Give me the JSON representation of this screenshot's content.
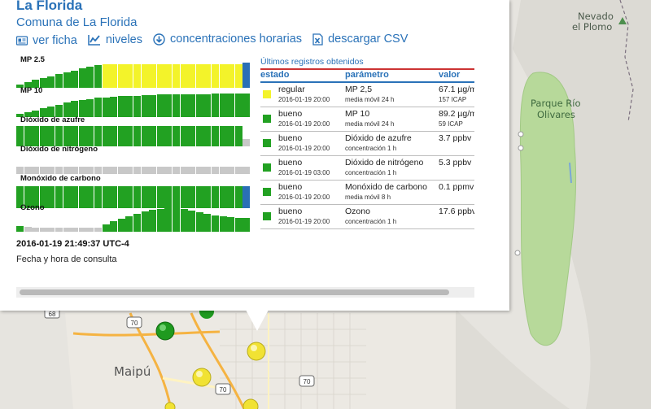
{
  "station": {
    "title": "La Florida",
    "commune": "Comuna de La Florida"
  },
  "links": [
    {
      "label": "ver ficha",
      "icon": "id-card-icon"
    },
    {
      "label": "niveles",
      "icon": "line-chart-icon"
    },
    {
      "label": "concentraciones horarias",
      "icon": "download-circle-icon"
    },
    {
      "label": "descargar CSV",
      "icon": "excel-file-icon"
    }
  ],
  "colors": {
    "bueno": "#22a122",
    "regular": "#f3f32a",
    "sin_dato": "#c8c8c8",
    "actual": "#2a6fb6",
    "link": "#2a72b8"
  },
  "parameters": [
    {
      "name": "MP 2.5",
      "bars": [
        {
          "v": 0.14,
          "s": "bueno"
        },
        {
          "v": 0.22,
          "s": "bueno"
        },
        {
          "v": 0.3,
          "s": "bueno"
        },
        {
          "v": 0.38,
          "s": "bueno"
        },
        {
          "v": 0.45,
          "s": "bueno"
        },
        {
          "v": 0.52,
          "s": "bueno"
        },
        {
          "v": 0.6,
          "s": "bueno"
        },
        {
          "v": 0.67,
          "s": "bueno"
        },
        {
          "v": 0.75,
          "s": "bueno"
        },
        {
          "v": 0.82,
          "s": "bueno"
        },
        {
          "v": 0.88,
          "s": "bueno"
        },
        {
          "v": 0.92,
          "s": "regular"
        },
        {
          "v": 0.92,
          "s": "regular"
        },
        {
          "v": 0.92,
          "s": "regular"
        },
        {
          "v": 0.92,
          "s": "regular"
        },
        {
          "v": 0.92,
          "s": "regular"
        },
        {
          "v": 0.92,
          "s": "regular"
        },
        {
          "v": 0.92,
          "s": "regular"
        },
        {
          "v": 0.92,
          "s": "regular"
        },
        {
          "v": 0.92,
          "s": "regular"
        },
        {
          "v": 0.92,
          "s": "regular"
        },
        {
          "v": 0.92,
          "s": "regular"
        },
        {
          "v": 0.92,
          "s": "regular"
        },
        {
          "v": 0.92,
          "s": "regular"
        },
        {
          "v": 0.92,
          "s": "regular"
        },
        {
          "v": 0.92,
          "s": "regular"
        },
        {
          "v": 0.92,
          "s": "regular"
        },
        {
          "v": 0.92,
          "s": "regular"
        },
        {
          "v": 0.92,
          "s": "regular"
        },
        {
          "v": 0.96,
          "s": "actual"
        }
      ]
    },
    {
      "name": "MP 10",
      "bars": [
        {
          "v": 0.12,
          "s": "bueno"
        },
        {
          "v": 0.18,
          "s": "bueno"
        },
        {
          "v": 0.26,
          "s": "bueno"
        },
        {
          "v": 0.34,
          "s": "bueno"
        },
        {
          "v": 0.42,
          "s": "bueno"
        },
        {
          "v": 0.48,
          "s": "bueno"
        },
        {
          "v": 0.56,
          "s": "bueno"
        },
        {
          "v": 0.62,
          "s": "bueno"
        },
        {
          "v": 0.66,
          "s": "bueno"
        },
        {
          "v": 0.7,
          "s": "bueno"
        },
        {
          "v": 0.74,
          "s": "bueno"
        },
        {
          "v": 0.76,
          "s": "bueno"
        },
        {
          "v": 0.78,
          "s": "bueno"
        },
        {
          "v": 0.8,
          "s": "bueno"
        },
        {
          "v": 0.82,
          "s": "bueno"
        },
        {
          "v": 0.82,
          "s": "bueno"
        },
        {
          "v": 0.84,
          "s": "bueno"
        },
        {
          "v": 0.84,
          "s": "bueno"
        },
        {
          "v": 0.86,
          "s": "bueno"
        },
        {
          "v": 0.86,
          "s": "bueno"
        },
        {
          "v": 0.86,
          "s": "bueno"
        },
        {
          "v": 0.88,
          "s": "bueno"
        },
        {
          "v": 0.88,
          "s": "bueno"
        },
        {
          "v": 0.88,
          "s": "bueno"
        },
        {
          "v": 0.88,
          "s": "bueno"
        },
        {
          "v": 0.9,
          "s": "bueno"
        },
        {
          "v": 0.9,
          "s": "bueno"
        },
        {
          "v": 0.9,
          "s": "bueno"
        },
        {
          "v": 0.9,
          "s": "bueno"
        },
        {
          "v": 0.92,
          "s": "bueno"
        }
      ]
    },
    {
      "name": "Dióxido de azufre",
      "bars": [
        {
          "v": 0.78,
          "s": "bueno"
        },
        {
          "v": 0.78,
          "s": "bueno"
        },
        {
          "v": 0.78,
          "s": "bueno"
        },
        {
          "v": 0.78,
          "s": "bueno"
        },
        {
          "v": 0.78,
          "s": "bueno"
        },
        {
          "v": 0.78,
          "s": "bueno"
        },
        {
          "v": 0.78,
          "s": "bueno"
        },
        {
          "v": 0.78,
          "s": "bueno"
        },
        {
          "v": 0.78,
          "s": "bueno"
        },
        {
          "v": 0.78,
          "s": "bueno"
        },
        {
          "v": 0.78,
          "s": "bueno"
        },
        {
          "v": 0.78,
          "s": "bueno"
        },
        {
          "v": 0.78,
          "s": "bueno"
        },
        {
          "v": 0.78,
          "s": "bueno"
        },
        {
          "v": 0.78,
          "s": "bueno"
        },
        {
          "v": 0.78,
          "s": "bueno"
        },
        {
          "v": 0.78,
          "s": "bueno"
        },
        {
          "v": 0.78,
          "s": "bueno"
        },
        {
          "v": 0.78,
          "s": "bueno"
        },
        {
          "v": 0.78,
          "s": "bueno"
        },
        {
          "v": 0.78,
          "s": "bueno"
        },
        {
          "v": 0.78,
          "s": "bueno"
        },
        {
          "v": 0.78,
          "s": "bueno"
        },
        {
          "v": 0.78,
          "s": "bueno"
        },
        {
          "v": 0.78,
          "s": "bueno"
        },
        {
          "v": 0.78,
          "s": "bueno"
        },
        {
          "v": 0.78,
          "s": "bueno"
        },
        {
          "v": 0.78,
          "s": "bueno"
        },
        {
          "v": 0.78,
          "s": "bueno"
        },
        {
          "v": 0.28,
          "s": "sin_dato"
        }
      ]
    },
    {
      "name": "Dióxido de nitrógeno",
      "bars": [
        {
          "v": 0.28,
          "s": "sin_dato"
        },
        {
          "v": 0.28,
          "s": "sin_dato"
        },
        {
          "v": 0.28,
          "s": "sin_dato"
        },
        {
          "v": 0.28,
          "s": "sin_dato"
        },
        {
          "v": 0.28,
          "s": "sin_dato"
        },
        {
          "v": 0.28,
          "s": "sin_dato"
        },
        {
          "v": 0.28,
          "s": "sin_dato"
        },
        {
          "v": 0.28,
          "s": "sin_dato"
        },
        {
          "v": 0.28,
          "s": "sin_dato"
        },
        {
          "v": 0.28,
          "s": "sin_dato"
        },
        {
          "v": 0.28,
          "s": "sin_dato"
        },
        {
          "v": 0.28,
          "s": "sin_dato"
        },
        {
          "v": 0.28,
          "s": "sin_dato"
        },
        {
          "v": 0.28,
          "s": "sin_dato"
        },
        {
          "v": 0.28,
          "s": "sin_dato"
        },
        {
          "v": 0.28,
          "s": "sin_dato"
        },
        {
          "v": 0.28,
          "s": "sin_dato"
        },
        {
          "v": 0.28,
          "s": "sin_dato"
        },
        {
          "v": 0.28,
          "s": "sin_dato"
        },
        {
          "v": 0.28,
          "s": "sin_dato"
        },
        {
          "v": 0.28,
          "s": "sin_dato"
        },
        {
          "v": 0.28,
          "s": "sin_dato"
        },
        {
          "v": 0.28,
          "s": "sin_dato"
        },
        {
          "v": 0.28,
          "s": "sin_dato"
        },
        {
          "v": 0.28,
          "s": "sin_dato"
        },
        {
          "v": 0.28,
          "s": "sin_dato"
        },
        {
          "v": 0.28,
          "s": "sin_dato"
        },
        {
          "v": 0.28,
          "s": "sin_dato"
        },
        {
          "v": 0.28,
          "s": "sin_dato"
        },
        {
          "v": 0.28,
          "s": "sin_dato"
        }
      ]
    },
    {
      "name": "Monóxido de carbono",
      "bars": [
        {
          "v": 0.84,
          "s": "bueno"
        },
        {
          "v": 0.84,
          "s": "bueno"
        },
        {
          "v": 0.84,
          "s": "bueno"
        },
        {
          "v": 0.84,
          "s": "bueno"
        },
        {
          "v": 0.84,
          "s": "bueno"
        },
        {
          "v": 0.84,
          "s": "bueno"
        },
        {
          "v": 0.84,
          "s": "bueno"
        },
        {
          "v": 0.84,
          "s": "bueno"
        },
        {
          "v": 0.84,
          "s": "bueno"
        },
        {
          "v": 0.84,
          "s": "bueno"
        },
        {
          "v": 0.84,
          "s": "bueno"
        },
        {
          "v": 0.84,
          "s": "bueno"
        },
        {
          "v": 0.84,
          "s": "bueno"
        },
        {
          "v": 0.84,
          "s": "bueno"
        },
        {
          "v": 0.84,
          "s": "bueno"
        },
        {
          "v": 0.84,
          "s": "bueno"
        },
        {
          "v": 0.84,
          "s": "bueno"
        },
        {
          "v": 0.84,
          "s": "bueno"
        },
        {
          "v": 0.84,
          "s": "bueno"
        },
        {
          "v": 0.84,
          "s": "bueno"
        },
        {
          "v": 0.84,
          "s": "bueno"
        },
        {
          "v": 0.84,
          "s": "bueno"
        },
        {
          "v": 0.84,
          "s": "bueno"
        },
        {
          "v": 0.84,
          "s": "bueno"
        },
        {
          "v": 0.84,
          "s": "bueno"
        },
        {
          "v": 0.84,
          "s": "bueno"
        },
        {
          "v": 0.84,
          "s": "bueno"
        },
        {
          "v": 0.84,
          "s": "bueno"
        },
        {
          "v": 0.84,
          "s": "bueno"
        },
        {
          "v": 0.84,
          "s": "actual"
        }
      ]
    },
    {
      "name": "Ozono",
      "bars": [
        {
          "v": 0.22,
          "s": "bueno"
        },
        {
          "v": 0.18,
          "s": "sin_dato"
        },
        {
          "v": 0.16,
          "s": "sin_dato"
        },
        {
          "v": 0.16,
          "s": "sin_dato"
        },
        {
          "v": 0.16,
          "s": "sin_dato"
        },
        {
          "v": 0.16,
          "s": "sin_dato"
        },
        {
          "v": 0.16,
          "s": "sin_dato"
        },
        {
          "v": 0.16,
          "s": "sin_dato"
        },
        {
          "v": 0.16,
          "s": "sin_dato"
        },
        {
          "v": 0.16,
          "s": "sin_dato"
        },
        {
          "v": 0.16,
          "s": "sin_dato"
        },
        {
          "v": 0.28,
          "s": "bueno"
        },
        {
          "v": 0.4,
          "s": "bueno"
        },
        {
          "v": 0.5,
          "s": "bueno"
        },
        {
          "v": 0.6,
          "s": "bueno"
        },
        {
          "v": 0.7,
          "s": "bueno"
        },
        {
          "v": 0.78,
          "s": "bueno"
        },
        {
          "v": 0.84,
          "s": "bueno"
        },
        {
          "v": 0.88,
          "s": "bueno"
        },
        {
          "v": 0.9,
          "s": "bueno"
        },
        {
          "v": 0.9,
          "s": "bueno"
        },
        {
          "v": 0.86,
          "s": "bueno"
        },
        {
          "v": 0.8,
          "s": "bueno"
        },
        {
          "v": 0.74,
          "s": "bueno"
        },
        {
          "v": 0.68,
          "s": "bueno"
        },
        {
          "v": 0.64,
          "s": "bueno"
        },
        {
          "v": 0.6,
          "s": "bueno"
        },
        {
          "v": 0.56,
          "s": "bueno"
        },
        {
          "v": 0.52,
          "s": "bueno"
        },
        {
          "v": 0.54,
          "s": "bueno"
        }
      ]
    }
  ],
  "timestamp": "2016-01-19 21:49:37 UTC-4",
  "timestamp_label": "Fecha y hora de consulta",
  "table": {
    "title": "Últimos registros obtenidos",
    "headers": {
      "estado": "estado",
      "parametro": "parámetro",
      "valor": "valor"
    },
    "rows": [
      {
        "status": "regular",
        "status_color": "#f3f32a",
        "date": "2016-01-19 20:00",
        "param": "MP 2,5",
        "detail": "media móvil 24 h",
        "value": "67.1 µg/m³",
        "sub": "157 ICAP"
      },
      {
        "status": "bueno",
        "status_color": "#22a122",
        "date": "2016-01-19 20:00",
        "param": "MP 10",
        "detail": "media móvil 24 h",
        "value": "89.2 µg/m³",
        "sub": "59 ICAP"
      },
      {
        "status": "bueno",
        "status_color": "#22a122",
        "date": "2016-01-19 20:00",
        "param": "Dióxido de azufre",
        "detail": "concentración 1 h",
        "value": "3.7 ppbv",
        "sub": ""
      },
      {
        "status": "bueno",
        "status_color": "#22a122",
        "date": "2016-01-19 03:00",
        "param": "Dióxido de nitrógeno",
        "detail": "concentración 1 h",
        "value": "5.3 ppbv",
        "sub": ""
      },
      {
        "status": "bueno",
        "status_color": "#22a122",
        "date": "2016-01-19 20:00",
        "param": "Monóxido de carbono",
        "detail": "media móvil 8 h",
        "value": "0.1 ppmv",
        "sub": ""
      },
      {
        "status": "bueno",
        "status_color": "#22a122",
        "date": "2016-01-19 20:00",
        "param": "Ozono",
        "detail": "concentración 1 h",
        "value": "17.6 ppbv",
        "sub": ""
      }
    ]
  },
  "map": {
    "labels": {
      "nevado": "Nevado",
      "plomo": "el Plomo",
      "parque1": "Parque Río",
      "parque2": "Olivares",
      "maipu": "Maipú"
    },
    "shields": [
      "68",
      "70",
      "70",
      "70"
    ],
    "marker_colors": {
      "green": "#1f9a1f",
      "yellow": "#f1e233"
    }
  }
}
